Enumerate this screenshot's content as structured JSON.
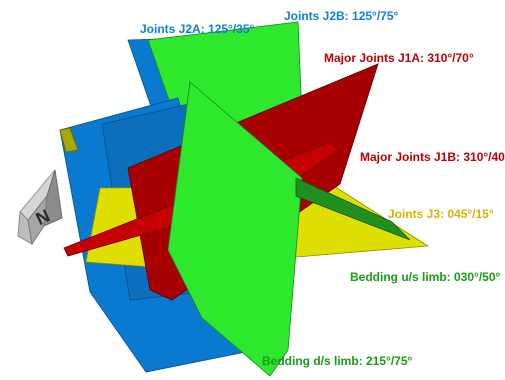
{
  "colors": {
    "j2": "#0d7fd6",
    "j1": "#c00000",
    "j3": "#d4c400",
    "bedding": "#1b9a1b",
    "plane_blue": "#0a7ad0",
    "plane_red": "#a80000",
    "plane_yellow": "#dede00",
    "plane_green": "#2ee82e"
  },
  "compass": {
    "icon": "north-arrow-icon",
    "letter": "N"
  },
  "labels": {
    "j2a": "Joints J2A: 125°/35°",
    "j2b": "Joints J2B: 125°/75°",
    "j1a": "Major Joints J1A: 310°/70°",
    "j1b": "Major Joints J1B: 310°/40",
    "j3": "Joints J3: 045°/15°",
    "bed_us": "Bedding u/s limb: 030°/50°",
    "bed_ds": "Bedding d/s limb: 215°/75°"
  }
}
